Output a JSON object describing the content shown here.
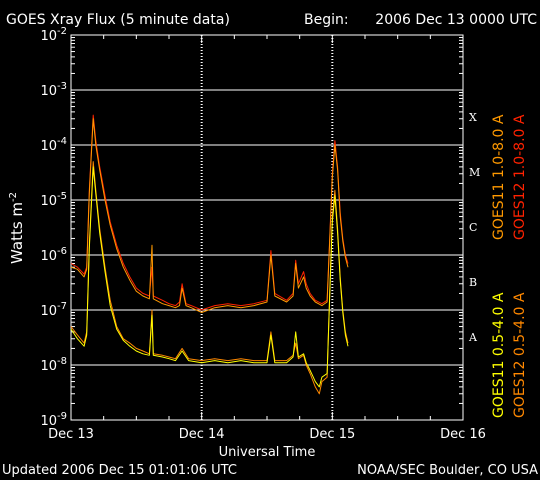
{
  "chart_data": {
    "type": "line",
    "title": "GOES Xray Flux (5 minute data)",
    "begin_label": "Begin:",
    "begin_value": "2006 Dec 13 0000 UTC",
    "xlabel": "Universal Time",
    "ylabel": "Watts m",
    "ylabel_sup": "-2",
    "y_scale": "log",
    "ylim": [
      1e-09,
      0.01
    ],
    "y_ticks": [
      {
        "exp": "-2",
        "value": 0.01
      },
      {
        "exp": "-3",
        "value": 0.001
      },
      {
        "exp": "-4",
        "value": 0.0001
      },
      {
        "exp": "-5",
        "value": 1e-05
      },
      {
        "exp": "-6",
        "value": 1e-06
      },
      {
        "exp": "-7",
        "value": 1e-07
      },
      {
        "exp": "-8",
        "value": 1e-08
      },
      {
        "exp": "-9",
        "value": 1e-09
      }
    ],
    "xlim_days": [
      0,
      3
    ],
    "x_ticks": [
      {
        "label": "Dec 13",
        "day": 0
      },
      {
        "label": "Dec 14",
        "day": 1
      },
      {
        "label": "Dec 15",
        "day": 2
      },
      {
        "label": "Dec 16",
        "day": 3
      }
    ],
    "flare_classes": [
      {
        "label": "X",
        "value": 0.00032
      },
      {
        "label": "M",
        "value": 3.2e-05
      },
      {
        "label": "C",
        "value": 3.2e-06
      },
      {
        "label": "B",
        "value": 3.2e-07
      },
      {
        "label": "A",
        "value": 3.2e-08
      }
    ],
    "grid": true,
    "series": [
      {
        "name": "GOES12 1.0-8.0 A",
        "color": "#ff2200",
        "points": [
          [
            0.0,
            7e-07
          ],
          [
            0.05,
            6e-07
          ],
          [
            0.1,
            4.5e-07
          ],
          [
            0.12,
            6e-07
          ],
          [
            0.14,
            1.5e-05
          ],
          [
            0.17,
            0.00035
          ],
          [
            0.19,
            0.00012
          ],
          [
            0.22,
            4e-05
          ],
          [
            0.26,
            1.2e-05
          ],
          [
            0.3,
            4e-06
          ],
          [
            0.35,
            1.5e-06
          ],
          [
            0.4,
            7e-07
          ],
          [
            0.45,
            4e-07
          ],
          [
            0.5,
            2.5e-07
          ],
          [
            0.55,
            2e-07
          ],
          [
            0.6,
            1.8e-07
          ],
          [
            0.62,
            6e-07
          ],
          [
            0.63,
            1.8e-07
          ],
          [
            0.7,
            1.5e-07
          ],
          [
            0.75,
            1.3e-07
          ],
          [
            0.8,
            1.2e-07
          ],
          [
            0.83,
            1.4e-07
          ],
          [
            0.85,
            3e-07
          ],
          [
            0.88,
            1.3e-07
          ],
          [
            0.92,
            1.2e-07
          ],
          [
            1.0,
            1e-07
          ],
          [
            1.1,
            1.2e-07
          ],
          [
            1.2,
            1.3e-07
          ],
          [
            1.3,
            1.2e-07
          ],
          [
            1.4,
            1.3e-07
          ],
          [
            1.5,
            1.5e-07
          ],
          [
            1.53,
            1.2e-06
          ],
          [
            1.56,
            2e-07
          ],
          [
            1.65,
            1.5e-07
          ],
          [
            1.7,
            2e-07
          ],
          [
            1.72,
            8e-07
          ],
          [
            1.74,
            3e-07
          ],
          [
            1.78,
            5e-07
          ],
          [
            1.8,
            3e-07
          ],
          [
            1.83,
            2e-07
          ],
          [
            1.87,
            1.5e-07
          ],
          [
            1.92,
            1.3e-07
          ],
          [
            1.96,
            1.5e-07
          ],
          [
            1.98,
            2e-06
          ],
          [
            2.0,
            3e-05
          ],
          [
            2.02,
            0.00012
          ],
          [
            2.04,
            4e-05
          ],
          [
            2.06,
            6e-06
          ],
          [
            2.08,
            2e-06
          ],
          [
            2.1,
            1e-06
          ],
          [
            2.12,
            7e-07
          ]
        ]
      },
      {
        "name": "GOES11 1.0-8.0 A",
        "color": "#ff9900",
        "points": [
          [
            0.0,
            6e-07
          ],
          [
            0.05,
            5.5e-07
          ],
          [
            0.1,
            4e-07
          ],
          [
            0.12,
            5.5e-07
          ],
          [
            0.14,
            1.3e-05
          ],
          [
            0.17,
            0.0003
          ],
          [
            0.19,
            0.0001
          ],
          [
            0.22,
            3.5e-05
          ],
          [
            0.26,
            1e-05
          ],
          [
            0.3,
            3.5e-06
          ],
          [
            0.35,
            1.3e-06
          ],
          [
            0.4,
            6e-07
          ],
          [
            0.45,
            3.5e-07
          ],
          [
            0.5,
            2.2e-07
          ],
          [
            0.55,
            1.8e-07
          ],
          [
            0.6,
            1.6e-07
          ],
          [
            0.62,
            1.5e-06
          ],
          [
            0.63,
            1.6e-07
          ],
          [
            0.7,
            1.3e-07
          ],
          [
            0.75,
            1.2e-07
          ],
          [
            0.8,
            1.1e-07
          ],
          [
            0.83,
            1.2e-07
          ],
          [
            0.85,
            2.5e-07
          ],
          [
            0.88,
            1.2e-07
          ],
          [
            0.92,
            1.1e-07
          ],
          [
            1.0,
            9e-08
          ],
          [
            1.1,
            1.1e-07
          ],
          [
            1.2,
            1.2e-07
          ],
          [
            1.3,
            1.1e-07
          ],
          [
            1.4,
            1.2e-07
          ],
          [
            1.5,
            1.4e-07
          ],
          [
            1.53,
            1e-06
          ],
          [
            1.56,
            1.8e-07
          ],
          [
            1.65,
            1.4e-07
          ],
          [
            1.7,
            1.8e-07
          ],
          [
            1.72,
            7e-07
          ],
          [
            1.74,
            2.5e-07
          ],
          [
            1.78,
            4e-07
          ],
          [
            1.8,
            2.5e-07
          ],
          [
            1.83,
            1.8e-07
          ],
          [
            1.87,
            1.4e-07
          ],
          [
            1.92,
            1.2e-07
          ],
          [
            1.96,
            1.4e-07
          ],
          [
            1.98,
            1.8e-06
          ],
          [
            2.0,
            2.5e-05
          ],
          [
            2.02,
            0.0001
          ],
          [
            2.04,
            3.5e-05
          ],
          [
            2.06,
            5e-06
          ],
          [
            2.08,
            1.8e-06
          ],
          [
            2.1,
            9e-07
          ],
          [
            2.12,
            6e-07
          ]
        ]
      },
      {
        "name": "GOES12 0.5-4.0 A",
        "color": "#ff8800",
        "points": [
          [
            0.0,
            5e-08
          ],
          [
            0.05,
            3.5e-08
          ],
          [
            0.1,
            2.5e-08
          ],
          [
            0.12,
            4e-08
          ],
          [
            0.14,
            1.5e-06
          ],
          [
            0.17,
            5e-05
          ],
          [
            0.19,
            1.5e-05
          ],
          [
            0.22,
            3e-06
          ],
          [
            0.26,
            6e-07
          ],
          [
            0.3,
            1.5e-07
          ],
          [
            0.35,
            5e-08
          ],
          [
            0.4,
            3e-08
          ],
          [
            0.45,
            2.5e-08
          ],
          [
            0.5,
            2e-08
          ],
          [
            0.55,
            1.8e-08
          ],
          [
            0.6,
            1.6e-08
          ],
          [
            0.62,
            1e-07
          ],
          [
            0.63,
            1.6e-08
          ],
          [
            0.7,
            1.5e-08
          ],
          [
            0.75,
            1.4e-08
          ],
          [
            0.8,
            1.3e-08
          ],
          [
            0.85,
            2e-08
          ],
          [
            0.9,
            1.3e-08
          ],
          [
            1.0,
            1.2e-08
          ],
          [
            1.1,
            1.3e-08
          ],
          [
            1.2,
            1.2e-08
          ],
          [
            1.3,
            1.3e-08
          ],
          [
            1.4,
            1.2e-08
          ],
          [
            1.5,
            1.2e-08
          ],
          [
            1.53,
            4e-08
          ],
          [
            1.56,
            1.2e-08
          ],
          [
            1.65,
            1.2e-08
          ],
          [
            1.7,
            1.5e-08
          ],
          [
            1.72,
            2.5e-08
          ],
          [
            1.74,
            1.3e-08
          ],
          [
            1.78,
            1.5e-08
          ],
          [
            1.8,
            1e-08
          ],
          [
            1.83,
            7e-09
          ],
          [
            1.87,
            4e-09
          ],
          [
            1.9,
            3e-09
          ],
          [
            1.92,
            5e-09
          ],
          [
            1.96,
            6e-09
          ],
          [
            1.98,
            2e-07
          ],
          [
            2.0,
            5e-06
          ],
          [
            2.02,
            1.5e-05
          ],
          [
            2.04,
            3e-06
          ],
          [
            2.06,
            4e-07
          ],
          [
            2.08,
            1e-07
          ],
          [
            2.1,
            4e-08
          ],
          [
            2.12,
            2.5e-08
          ]
        ]
      },
      {
        "name": "GOES11 0.5-4.0 A",
        "color": "#ffff00",
        "points": [
          [
            0.0,
            4.5e-08
          ],
          [
            0.05,
            3e-08
          ],
          [
            0.1,
            2.2e-08
          ],
          [
            0.12,
            3.5e-08
          ],
          [
            0.14,
            1.3e-06
          ],
          [
            0.17,
            4e-05
          ],
          [
            0.19,
            1.3e-05
          ],
          [
            0.22,
            2.5e-06
          ],
          [
            0.26,
            5e-07
          ],
          [
            0.3,
            1.2e-07
          ],
          [
            0.35,
            4.5e-08
          ],
          [
            0.4,
            2.8e-08
          ],
          [
            0.45,
            2.2e-08
          ],
          [
            0.5,
            1.8e-08
          ],
          [
            0.55,
            1.6e-08
          ],
          [
            0.6,
            1.5e-08
          ],
          [
            0.62,
            8e-08
          ],
          [
            0.63,
            1.5e-08
          ],
          [
            0.7,
            1.4e-08
          ],
          [
            0.75,
            1.3e-08
          ],
          [
            0.8,
            1.2e-08
          ],
          [
            0.85,
            1.8e-08
          ],
          [
            0.9,
            1.2e-08
          ],
          [
            1.0,
            1.1e-08
          ],
          [
            1.1,
            1.2e-08
          ],
          [
            1.2,
            1.1e-08
          ],
          [
            1.3,
            1.2e-08
          ],
          [
            1.4,
            1.1e-08
          ],
          [
            1.5,
            1.1e-08
          ],
          [
            1.53,
            3.5e-08
          ],
          [
            1.56,
            1.1e-08
          ],
          [
            1.65,
            1.1e-08
          ],
          [
            1.7,
            1.4e-08
          ],
          [
            1.72,
            4e-08
          ],
          [
            1.74,
            1.4e-08
          ],
          [
            1.78,
            1.6e-08
          ],
          [
            1.8,
            1.1e-08
          ],
          [
            1.83,
            8e-09
          ],
          [
            1.87,
            5e-09
          ],
          [
            1.9,
            4e-09
          ],
          [
            1.92,
            6e-09
          ],
          [
            1.96,
            7e-09
          ],
          [
            1.98,
            1.8e-07
          ],
          [
            2.0,
            4e-06
          ],
          [
            2.02,
            1.2e-05
          ],
          [
            2.04,
            2.5e-06
          ],
          [
            2.06,
            3.5e-07
          ],
          [
            2.08,
            9e-08
          ],
          [
            2.1,
            3.5e-08
          ],
          [
            2.12,
            2.2e-08
          ]
        ]
      }
    ]
  },
  "footer": {
    "updated": "Updated 2006 Dec 15 01:01:06 UTC",
    "source": "NOAA/SEC Boulder, CO USA"
  }
}
